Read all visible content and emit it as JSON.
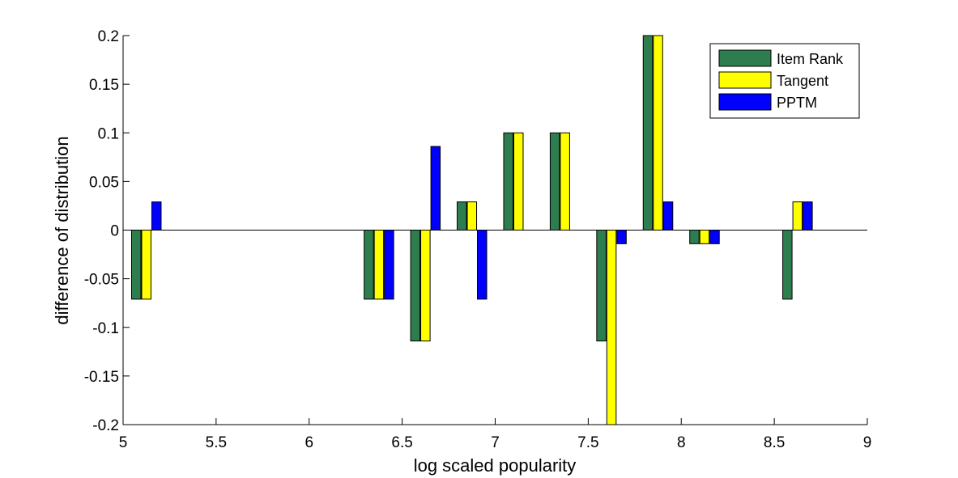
{
  "chart_data": {
    "type": "bar",
    "title": "",
    "xlabel": "log scaled popularity",
    "ylabel": "difference of distribution",
    "xlim": [
      5,
      9
    ],
    "ylim": [
      -0.2,
      0.2
    ],
    "xticks": [
      5,
      5.5,
      6,
      6.5,
      7,
      7.5,
      8,
      8.5,
      9
    ],
    "xtick_labels": [
      "5",
      "5.5",
      "6",
      "6.5",
      "7",
      "7.5",
      "8",
      "8.5",
      "9"
    ],
    "yticks": [
      -0.2,
      -0.15,
      -0.1,
      -0.05,
      0,
      0.05,
      0.1,
      0.15,
      0.2
    ],
    "ytick_labels": [
      "-0.2",
      "-0.15",
      "-0.1",
      "-0.05",
      "0",
      "0.05",
      "0.1",
      "0.15",
      "0.2"
    ],
    "grid": false,
    "legend_position": "top-right",
    "x": [
      5.125,
      6.375,
      6.625,
      6.875,
      7.125,
      7.375,
      7.625,
      7.875,
      8.125,
      8.625
    ],
    "series": [
      {
        "name": "Item Rank",
        "color": "#2e7d4f",
        "values": [
          -0.071,
          -0.071,
          -0.114,
          0.029,
          0.1,
          0.1,
          -0.114,
          0.2,
          -0.014,
          -0.071
        ]
      },
      {
        "name": "Tangent",
        "color": "#ffff00",
        "values": [
          -0.071,
          -0.071,
          -0.114,
          0.029,
          0.1,
          0.1,
          -0.2,
          0.2,
          -0.014,
          0.029
        ]
      },
      {
        "name": "PPTM",
        "color": "#0000ff",
        "values": [
          0.029,
          -0.071,
          0.086,
          -0.071,
          0,
          0,
          -0.014,
          0.029,
          -0.014,
          0.029
        ]
      }
    ]
  }
}
